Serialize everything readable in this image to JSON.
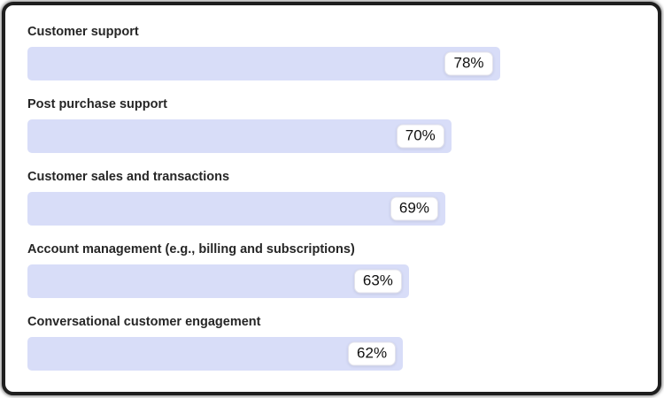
{
  "chart_data": {
    "type": "bar",
    "orientation": "horizontal",
    "title": "",
    "xlabel": "",
    "ylabel": "",
    "xlim": [
      0,
      100
    ],
    "grid": false,
    "legend": false,
    "value_suffix": "%",
    "bar_color": "#d8ddf8",
    "badge_background": "#ffffff",
    "badge_border_color": "#e3e3ec",
    "label_color": "#262626",
    "value_color": "#101010",
    "frame_border_color": "#1e1e1e",
    "categories": [
      "Customer support",
      "Post purchase support",
      "Customer sales and transactions",
      "Account management (e.g., billing and subscriptions)",
      "Conversational customer engagement"
    ],
    "values": [
      78,
      70,
      69,
      63,
      62
    ],
    "value_labels": [
      "78%",
      "70%",
      "69%",
      "63%",
      "62%"
    ]
  }
}
